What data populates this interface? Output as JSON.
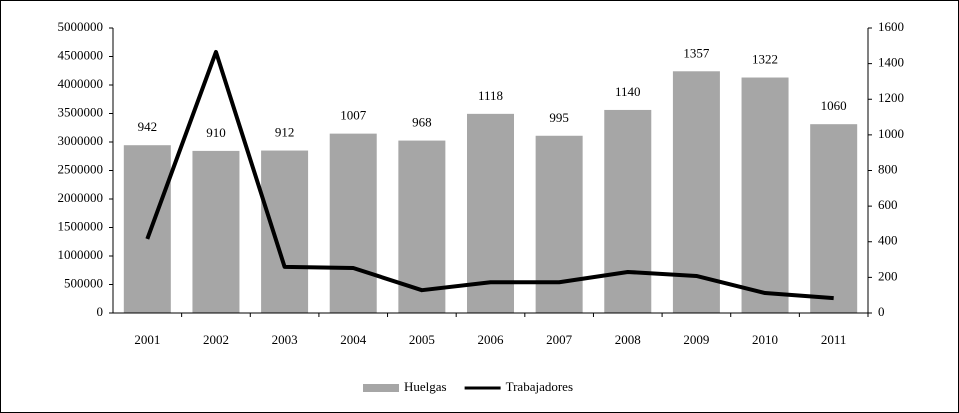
{
  "chart_data": {
    "type": "bar_line",
    "categories": [
      "2001",
      "2002",
      "2003",
      "2004",
      "2005",
      "2006",
      "2007",
      "2008",
      "2009",
      "2010",
      "2011"
    ],
    "series": [
      {
        "name": "Huelgas",
        "type": "bar",
        "axis": "y2",
        "color": "#a6a6a6",
        "values": [
          942,
          910,
          912,
          1007,
          968,
          1118,
          995,
          1140,
          1357,
          1322,
          1060
        ]
      },
      {
        "name": "Trabajadores",
        "type": "line",
        "axis": "y",
        "color": "#000000",
        "values": [
          1300000,
          4580000,
          810000,
          790000,
          400000,
          540000,
          540000,
          720000,
          650000,
          350000,
          260000
        ]
      }
    ],
    "ylim": [
      0,
      5000000
    ],
    "yticks": [
      0,
      500000,
      1000000,
      1500000,
      2000000,
      2500000,
      3000000,
      3500000,
      4000000,
      4500000,
      5000000
    ],
    "y2lim": [
      0,
      1600
    ],
    "y2ticks": [
      0,
      200,
      400,
      600,
      800,
      1000,
      1200,
      1400,
      1600
    ],
    "legend": "bottom"
  }
}
